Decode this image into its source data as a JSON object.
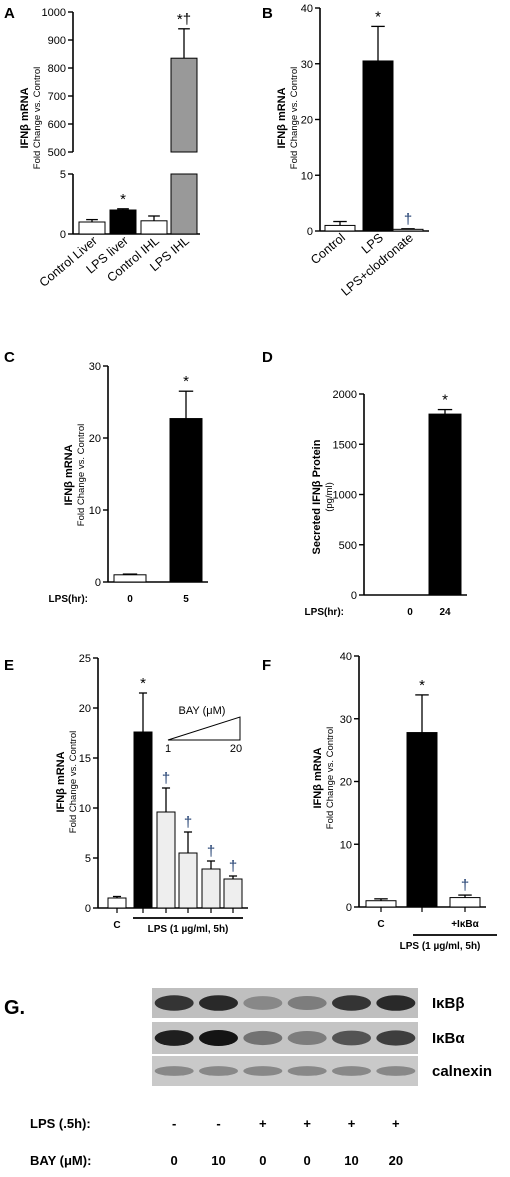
{
  "panels": {
    "A": {
      "letter": "A"
    },
    "B": {
      "letter": "B"
    },
    "C": {
      "letter": "C"
    },
    "D": {
      "letter": "D"
    },
    "E": {
      "letter": "E"
    },
    "F": {
      "letter": "F"
    },
    "G": {
      "letter": "G."
    }
  },
  "chart_data": [
    {
      "id": "A",
      "type": "bar",
      "ylabel": "IFNβ mRNA",
      "ylabel_sub": "Fold Change vs. Control",
      "axis_break": true,
      "ylim_lower": [
        0,
        5
      ],
      "ylim_upper": [
        500,
        1000
      ],
      "yticks_lower": [
        "0",
        "5"
      ],
      "yticks_upper": [
        "500",
        "600",
        "700",
        "800",
        "900",
        "1000"
      ],
      "categories": [
        "Control Liver",
        "LPS liver",
        "Control IHL",
        "LPS IHL"
      ],
      "values": [
        1.0,
        2.0,
        1.1,
        835
      ],
      "errors": [
        0.2,
        0.1,
        0.4,
        105
      ],
      "fills": [
        "#ffffff",
        "#000000",
        "#ffffff",
        "#999999"
      ],
      "annotations": [
        "",
        "*",
        "",
        "*†"
      ]
    },
    {
      "id": "B",
      "type": "bar",
      "ylabel": "IFNβ mRNA",
      "ylabel_sub": "Fold Change vs. Control",
      "ylim": [
        0,
        40
      ],
      "yticks": [
        "0",
        "10",
        "20",
        "30",
        "40"
      ],
      "categories": [
        "Control",
        "LPS",
        "LPS+clodronate"
      ],
      "values": [
        1.0,
        30.5,
        0.3
      ],
      "errors": [
        0.7,
        6.2,
        0.1
      ],
      "fills": [
        "#ffffff",
        "#000000",
        "#ffffff"
      ],
      "annotations": [
        "",
        "*",
        "†"
      ]
    },
    {
      "id": "C",
      "type": "bar",
      "ylabel": "IFNβ mRNA",
      "ylabel_sub": "Fold Change vs. Control",
      "ylim": [
        0,
        30
      ],
      "yticks": [
        "0",
        "10",
        "20",
        "30"
      ],
      "xprefix": "LPS(hr):",
      "categories": [
        "0",
        "5"
      ],
      "values": [
        1.0,
        22.7
      ],
      "errors": [
        0.1,
        3.8
      ],
      "fills": [
        "#ffffff",
        "#000000"
      ],
      "annotations": [
        "",
        "*"
      ]
    },
    {
      "id": "D",
      "type": "bar",
      "ylabel": "Secreted IFNβ Protein",
      "ylabel_sub": "(pg/ml)",
      "ylim": [
        0,
        2000
      ],
      "yticks": [
        "0",
        "500",
        "1000",
        "1500",
        "2000"
      ],
      "xprefix": "LPS(hr):",
      "categories": [
        "0",
        "24"
      ],
      "values": [
        0,
        1800
      ],
      "errors": [
        0,
        45
      ],
      "fills": [
        "#ffffff",
        "#000000"
      ],
      "annotations": [
        "",
        "*"
      ]
    },
    {
      "id": "E",
      "type": "bar",
      "ylabel": "IFNβ mRNA",
      "ylabel_sub": "Fold Change vs. Control",
      "ylim": [
        0,
        25
      ],
      "yticks": [
        "0",
        "5",
        "10",
        "15",
        "20",
        "25"
      ],
      "categories": [
        "C",
        "",
        "",
        "",
        "",
        ""
      ],
      "values": [
        1.0,
        17.6,
        9.6,
        5.5,
        3.9,
        2.9
      ],
      "errors": [
        0.15,
        3.9,
        2.4,
        2.1,
        0.8,
        0.3
      ],
      "fills": [
        "#ffffff",
        "#000000",
        "#eeeeee",
        "#eeeeee",
        "#eeeeee",
        "#eeeeee"
      ],
      "annotations": [
        "",
        "*",
        "†",
        "†",
        "†",
        "†"
      ],
      "group_label": "LPS (1 µg/ml, 5h)",
      "inset_title": "BAY (μM)",
      "inset_low": "1",
      "inset_high": "20"
    },
    {
      "id": "F",
      "type": "bar",
      "ylabel": "IFNβ mRNA",
      "ylabel_sub": "Fold Change vs. Control",
      "ylim": [
        0,
        40
      ],
      "yticks": [
        "0",
        "10",
        "20",
        "30",
        "40"
      ],
      "categories": [
        "C",
        "",
        "+IκBα"
      ],
      "values": [
        1.0,
        27.8,
        1.5
      ],
      "errors": [
        0.3,
        6.0,
        0.4
      ],
      "fills": [
        "#ffffff",
        "#000000",
        "#ffffff"
      ],
      "annotations": [
        "",
        "*",
        "†"
      ],
      "group_label": "LPS (1 µg/ml, 5h)"
    }
  ],
  "blot": {
    "bands": [
      "IκBβ",
      "IκBα",
      "calnexin"
    ],
    "intensity": [
      [
        0.85,
        0.9,
        0.45,
        0.5,
        0.85,
        0.9
      ],
      [
        0.95,
        1.0,
        0.55,
        0.5,
        0.7,
        0.8
      ],
      [
        0.45,
        0.45,
        0.45,
        0.45,
        0.45,
        0.45
      ]
    ],
    "rows": [
      {
        "label": "LPS (.5h):",
        "values": [
          "-",
          "-",
          "+",
          "+",
          "+",
          "+"
        ]
      },
      {
        "label": "BAY (μM):",
        "values": [
          "0",
          "10",
          "0",
          "0",
          "10",
          "20"
        ]
      }
    ]
  }
}
